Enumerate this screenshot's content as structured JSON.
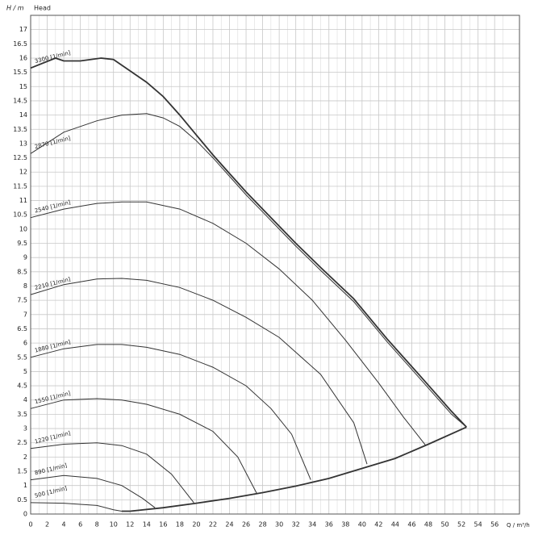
{
  "chart_data": {
    "type": "line",
    "y_label": "H / m",
    "title": "Head",
    "x_label": "Q / m³/h",
    "xlim": [
      0,
      59
    ],
    "ylim": [
      0,
      17.5
    ],
    "xticks": [
      0,
      2,
      4,
      6,
      8,
      10,
      12,
      14,
      16,
      18,
      20,
      22,
      24,
      26,
      28,
      30,
      32,
      34,
      36,
      38,
      40,
      42,
      44,
      46,
      48,
      50,
      52,
      54,
      56
    ],
    "xminorticks": [
      1,
      3,
      5,
      7,
      9,
      11,
      13,
      15,
      17,
      19,
      21,
      23,
      25,
      27,
      29,
      31,
      33,
      35,
      37,
      39,
      41,
      43,
      45,
      47,
      49,
      51,
      53,
      55,
      57,
      59
    ],
    "yticks": [
      0,
      0.5,
      1,
      1.5,
      2,
      2.5,
      3,
      3.5,
      4,
      4.5,
      5,
      5.5,
      6,
      6.5,
      7,
      7.5,
      8,
      8.5,
      9,
      9.5,
      10,
      10.5,
      11,
      11.5,
      12,
      12.5,
      13,
      13.5,
      14,
      14.5,
      15,
      15.5,
      16,
      16.5,
      17
    ],
    "grid": true,
    "series": [
      {
        "name": "3300 [1/min]",
        "color": "#333333",
        "x": [
          0,
          3,
          4,
          6,
          8.5,
          10,
          12,
          14,
          16,
          18,
          20,
          22,
          24,
          26,
          28,
          30,
          32,
          35,
          39,
          43,
          47,
          50.8,
          52.6
        ],
        "values": [
          15.65,
          16.0,
          15.9,
          15.9,
          16.0,
          15.95,
          15.55,
          15.15,
          14.65,
          14.0,
          13.3,
          12.6,
          11.95,
          11.3,
          10.7,
          10.1,
          9.5,
          8.65,
          7.55,
          6.15,
          4.85,
          3.6,
          3.05
        ]
      },
      {
        "name": "2870 [1/min]",
        "color": "#333333",
        "x": [
          0,
          4,
          8,
          11,
          14,
          16,
          18,
          20,
          22,
          24,
          26,
          28,
          30,
          32,
          35,
          39,
          43,
          47,
          50.8,
          52.6
        ],
        "values": [
          12.65,
          13.4,
          13.8,
          14.0,
          14.05,
          13.9,
          13.6,
          13.1,
          12.5,
          11.85,
          11.2,
          10.6,
          10.0,
          9.4,
          8.55,
          7.45,
          6.05,
          4.75,
          3.5,
          3.05
        ]
      },
      {
        "name": "2540 [1/min]",
        "color": "#333333",
        "x": [
          0,
          4,
          8,
          11,
          14,
          18,
          22,
          26,
          30,
          34,
          38,
          42,
          45,
          47.7
        ],
        "values": [
          10.4,
          10.7,
          10.9,
          10.95,
          10.95,
          10.7,
          10.2,
          9.5,
          8.6,
          7.5,
          6.1,
          4.6,
          3.4,
          2.4
        ]
      },
      {
        "name": "2210 [1/min]",
        "color": "#333333",
        "x": [
          0,
          4,
          8,
          11,
          14,
          18,
          22,
          26,
          30,
          35,
          39,
          40.6
        ],
        "values": [
          7.7,
          8.05,
          8.25,
          8.27,
          8.2,
          7.95,
          7.5,
          6.9,
          6.2,
          4.9,
          3.2,
          1.75
        ]
      },
      {
        "name": "1880 [1/min]",
        "color": "#333333",
        "x": [
          0,
          4,
          8,
          11,
          14,
          18,
          22,
          26,
          29,
          31.5,
          33.8
        ],
        "values": [
          5.5,
          5.8,
          5.95,
          5.95,
          5.85,
          5.6,
          5.15,
          4.5,
          3.7,
          2.8,
          1.2
        ]
      },
      {
        "name": "1550 [1/min]",
        "color": "#333333",
        "x": [
          0,
          4,
          8,
          11,
          14,
          18,
          22,
          25,
          27.3
        ],
        "values": [
          3.7,
          4.0,
          4.05,
          4.0,
          3.85,
          3.5,
          2.9,
          2.0,
          0.72
        ]
      },
      {
        "name": "1220 [1/min]",
        "color": "#333333",
        "x": [
          0,
          4,
          8,
          11,
          14,
          17,
          19.7
        ],
        "values": [
          2.3,
          2.45,
          2.5,
          2.4,
          2.1,
          1.4,
          0.4
        ]
      },
      {
        "name": "890 [1/min]",
        "color": "#333333",
        "x": [
          0,
          4,
          8,
          11,
          13.5,
          15
        ],
        "values": [
          1.2,
          1.35,
          1.25,
          1.0,
          0.55,
          0.22
        ]
      },
      {
        "name": "500 [1/min]",
        "color": "#333333",
        "x": [
          0,
          4,
          8,
          10,
          11
        ],
        "values": [
          0.4,
          0.38,
          0.3,
          0.15,
          0.1
        ]
      }
    ],
    "envelope": {
      "color": "#333333",
      "x": [
        11,
        12,
        16,
        20,
        24,
        28,
        32,
        36,
        40,
        44,
        48,
        52.6
      ],
      "values": [
        0.1,
        0.1,
        0.22,
        0.38,
        0.55,
        0.75,
        0.98,
        1.25,
        1.6,
        1.95,
        2.45,
        3.05
      ]
    }
  }
}
